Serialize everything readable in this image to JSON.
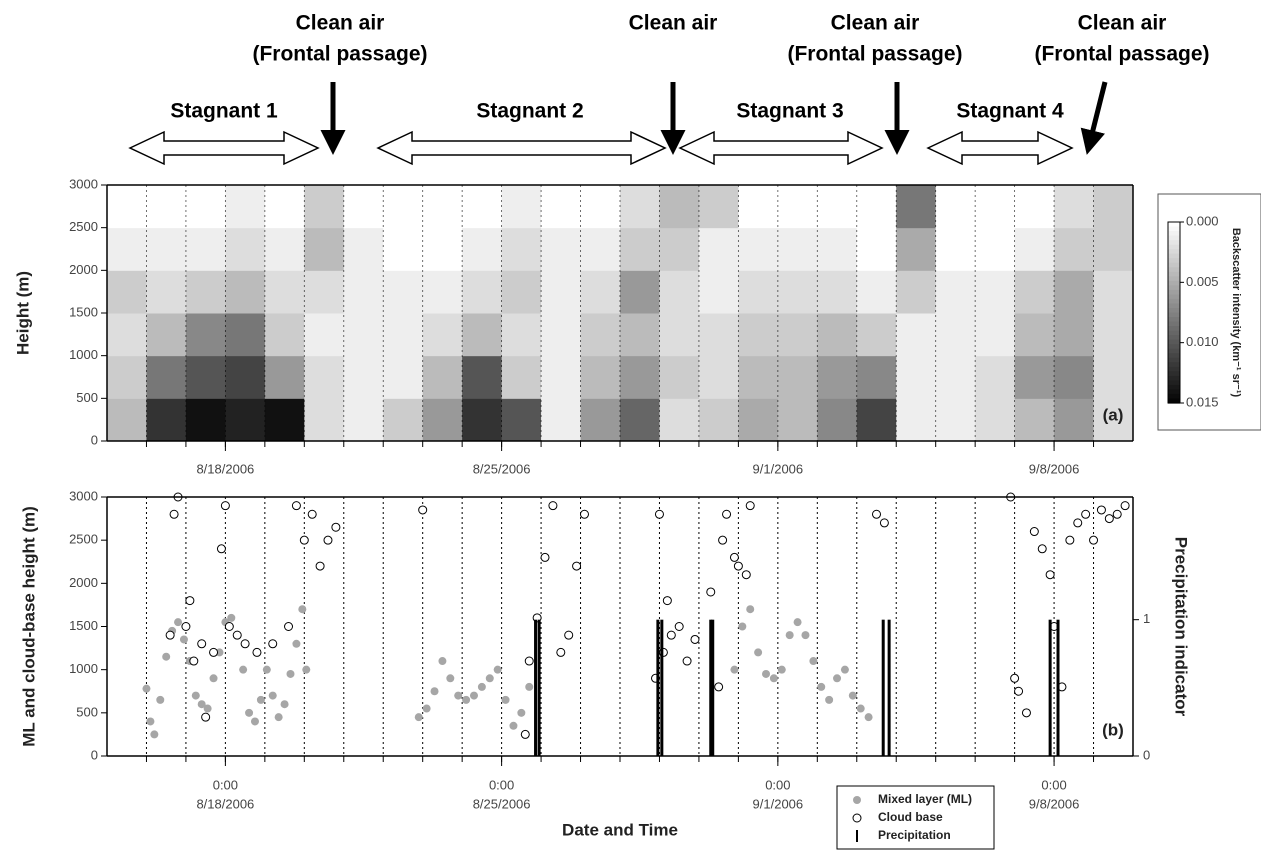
{
  "chart_data": [
    {
      "type": "heatmap",
      "panel_label": "(a)",
      "ylabel": "Height (m)",
      "xlim": [
        15,
        41
      ],
      "ylim": [
        0,
        3000
      ],
      "yticks": [
        0,
        500,
        1000,
        1500,
        2000,
        2500,
        3000
      ],
      "xticks": [
        {
          "value": 18,
          "label": "8/18/2006"
        },
        {
          "value": 25,
          "label": "8/25/2006"
        },
        {
          "value": 32,
          "label": "9/1/2006"
        },
        {
          "value": 39,
          "label": "9/8/2006"
        }
      ],
      "xgrid": [
        16,
        17,
        18,
        19,
        20,
        21,
        22,
        23,
        24,
        25,
        26,
        27,
        28,
        29,
        30,
        31,
        32,
        33,
        34,
        35,
        36,
        37,
        38,
        39,
        40
      ],
      "x_bins": [
        15,
        16,
        17,
        18,
        19,
        20,
        21,
        22,
        23,
        24,
        25,
        26,
        27,
        28,
        29,
        30,
        31,
        32,
        33,
        34,
        35,
        36,
        37,
        38,
        39,
        40,
        41
      ],
      "y_bins": [
        0,
        500,
        1000,
        1500,
        2000,
        2500,
        3000
      ],
      "values": [
        [
          0.004,
          0.003,
          0.002,
          0.003,
          0.001,
          0
        ],
        [
          0.012,
          0.008,
          0.004,
          0.002,
          0.001,
          0
        ],
        [
          0.014,
          0.01,
          0.007,
          0.003,
          0.001,
          0
        ],
        [
          0.013,
          0.011,
          0.008,
          0.004,
          0.002,
          0.001
        ],
        [
          0.014,
          0.006,
          0.003,
          0.002,
          0.001,
          0
        ],
        [
          0.002,
          0.002,
          0.001,
          0.002,
          0.004,
          0.003
        ],
        [
          0.001,
          0.001,
          0.001,
          0.001,
          0.001,
          0
        ],
        [
          0.003,
          0.001,
          0.001,
          0.001,
          0,
          0
        ],
        [
          0.006,
          0.004,
          0.002,
          0.001,
          0,
          0
        ],
        [
          0.012,
          0.01,
          0.004,
          0.002,
          0.001,
          0
        ],
        [
          0.01,
          0.003,
          0.002,
          0.003,
          0.002,
          0.001
        ],
        [
          0.001,
          0.001,
          0.001,
          0.001,
          0.001,
          0
        ],
        [
          0.006,
          0.004,
          0.003,
          0.002,
          0.001,
          0
        ],
        [
          0.009,
          0.006,
          0.004,
          0.006,
          0.003,
          0.002
        ],
        [
          0.002,
          0.003,
          0.002,
          0.002,
          0.003,
          0.004
        ],
        [
          0.003,
          0.002,
          0.002,
          0.001,
          0.001,
          0.003
        ],
        [
          0.005,
          0.004,
          0.003,
          0.002,
          0.001,
          0
        ],
        [
          0.004,
          0.004,
          0.003,
          0.002,
          0.001,
          0
        ],
        [
          0.007,
          0.006,
          0.004,
          0.002,
          0.001,
          0
        ],
        [
          0.011,
          0.007,
          0.003,
          0.001,
          0,
          0
        ],
        [
          0.001,
          0.001,
          0.001,
          0.003,
          0.005,
          0.008
        ],
        [
          0.001,
          0.001,
          0.001,
          0.001,
          0,
          0
        ],
        [
          0.002,
          0.002,
          0.001,
          0.001,
          0,
          0
        ],
        [
          0.004,
          0.006,
          0.004,
          0.003,
          0.001,
          0
        ],
        [
          0.006,
          0.007,
          0.005,
          0.005,
          0.003,
          0.002
        ],
        [
          0.002,
          0.002,
          0.002,
          0.002,
          0.003,
          0.003
        ]
      ],
      "colorbar": {
        "title": "Backscatter intensity (km⁻¹ sr⁻¹)",
        "clim": [
          0,
          0.015
        ],
        "ticks": [
          {
            "value": 0,
            "label": "0.000"
          },
          {
            "value": 0.005,
            "label": "0.005"
          },
          {
            "value": 0.01,
            "label": "0.010"
          },
          {
            "value": 0.015,
            "label": "0.015"
          }
        ]
      },
      "annotations": [
        {
          "lines": [
            "Stagnant 1"
          ]
        },
        {
          "lines": [
            "Clean air",
            "(Frontal passage)"
          ]
        },
        {
          "lines": [
            "Stagnant 2"
          ]
        },
        {
          "lines": [
            "Clean air"
          ]
        },
        {
          "lines": [
            "Stagnant 3"
          ]
        },
        {
          "lines": [
            "Clean air",
            "(Frontal passage)"
          ]
        },
        {
          "lines": [
            "Stagnant 4"
          ]
        },
        {
          "lines": [
            "Clean air",
            "(Frontal passage)"
          ]
        }
      ]
    },
    {
      "type": "scatter",
      "panel_label": "(b)",
      "xlabel": "Date and Time",
      "ylabel": "ML and cloud-base height (m)",
      "y2label": "Precipitation indicator",
      "xlim": [
        15,
        41
      ],
      "ylim": [
        0,
        3000
      ],
      "y2lim": [
        0,
        1.9
      ],
      "yticks": [
        0,
        500,
        1000,
        1500,
        2000,
        2500,
        3000
      ],
      "y2ticks": [
        0,
        1
      ],
      "xtick_time": "0:00",
      "xticks": [
        {
          "value": 18,
          "label": "8/18/2006"
        },
        {
          "value": 25,
          "label": "8/25/2006"
        },
        {
          "value": 32,
          "label": "9/1/2006"
        },
        {
          "value": 39,
          "label": "9/8/2006"
        }
      ],
      "xgrid": [
        16,
        17,
        18,
        19,
        20,
        21,
        22,
        23,
        24,
        25,
        26,
        27,
        28,
        29,
        30,
        31,
        32,
        33,
        34,
        35,
        36,
        37,
        38,
        39,
        40
      ],
      "series": [
        {
          "name": "Mixed layer (ML)",
          "marker": "filled",
          "color": "#a6a6a6",
          "x": [
            16.0,
            16.1,
            16.2,
            16.35,
            16.5,
            16.65,
            16.8,
            16.95,
            17.1,
            17.25,
            17.4,
            17.55,
            17.7,
            17.85,
            18.0,
            18.15,
            18.3,
            18.45,
            18.6,
            18.75,
            18.9,
            19.05,
            19.2,
            19.35,
            19.5,
            19.65,
            19.8,
            19.95,
            20.05,
            22.9,
            23.1,
            23.3,
            23.5,
            23.7,
            23.9,
            24.1,
            24.3,
            24.5,
            24.7,
            24.9,
            25.1,
            25.3,
            25.5,
            25.7,
            30.9,
            31.1,
            31.3,
            31.5,
            31.7,
            31.9,
            32.1,
            32.3,
            32.5,
            32.7,
            32.9,
            33.1,
            33.3,
            33.5,
            33.7,
            33.9,
            34.1,
            34.3
          ],
          "values": [
            780,
            400,
            250,
            650,
            1150,
            1450,
            1550,
            1350,
            1100,
            700,
            600,
            550,
            900,
            1200,
            1550,
            1600,
            1400,
            1000,
            500,
            400,
            650,
            1000,
            700,
            450,
            600,
            950,
            1300,
            1700,
            1000,
            450,
            550,
            750,
            1100,
            900,
            700,
            650,
            700,
            800,
            900,
            1000,
            650,
            350,
            500,
            800,
            1000,
            1500,
            1700,
            1200,
            950,
            900,
            1000,
            1400,
            1550,
            1400,
            1100,
            800,
            650,
            900,
            1000,
            700,
            550,
            450
          ]
        },
        {
          "name": "Cloud base",
          "marker": "open",
          "color": "#000000",
          "x": [
            16.6,
            16.7,
            16.8,
            17.0,
            17.1,
            17.2,
            17.4,
            17.5,
            17.7,
            17.9,
            18.0,
            18.1,
            18.3,
            18.5,
            18.8,
            19.2,
            19.6,
            19.8,
            20.0,
            20.2,
            20.4,
            20.6,
            20.8,
            23.0,
            25.6,
            25.7,
            25.9,
            26.1,
            26.3,
            26.5,
            26.7,
            26.9,
            27.1,
            28.9,
            29.0,
            29.1,
            29.2,
            29.3,
            29.5,
            29.7,
            29.9,
            30.3,
            30.5,
            30.6,
            30.7,
            30.9,
            31.0,
            31.2,
            31.3,
            34.5,
            34.7,
            37.9,
            38.0,
            38.1,
            38.3,
            38.5,
            38.7,
            38.9,
            39.0,
            39.2,
            39.4,
            39.6,
            39.8,
            40.0,
            40.2,
            40.4,
            40.6,
            40.8
          ],
          "values": [
            1400,
            2800,
            3000,
            1500,
            1800,
            1100,
            1300,
            450,
            1200,
            2400,
            2900,
            1500,
            1400,
            1300,
            1200,
            1300,
            1500,
            2900,
            2500,
            2800,
            2200,
            2500,
            2650,
            2850,
            250,
            1100,
            1600,
            2300,
            2900,
            1200,
            1400,
            2200,
            2800,
            900,
            2800,
            1200,
            1800,
            1400,
            1500,
            1100,
            1350,
            1900,
            800,
            2500,
            2800,
            2300,
            2200,
            2100,
            2900,
            2800,
            2700,
            3000,
            900,
            750,
            500,
            2600,
            2400,
            2100,
            1500,
            800,
            2500,
            2700,
            2800,
            2500,
            2850,
            2750,
            2800,
            2900
          ]
        },
        {
          "name": "Precipitation",
          "marker": "bar",
          "axis": "y2",
          "color": "#000000",
          "x": [
            25.86,
            25.95,
            28.96,
            29.06,
            30.3,
            30.35,
            34.67,
            34.82,
            38.9,
            39.1
          ],
          "values": [
            1,
            1,
            1,
            1,
            1,
            1,
            1,
            1,
            1,
            1
          ]
        }
      ]
    }
  ]
}
